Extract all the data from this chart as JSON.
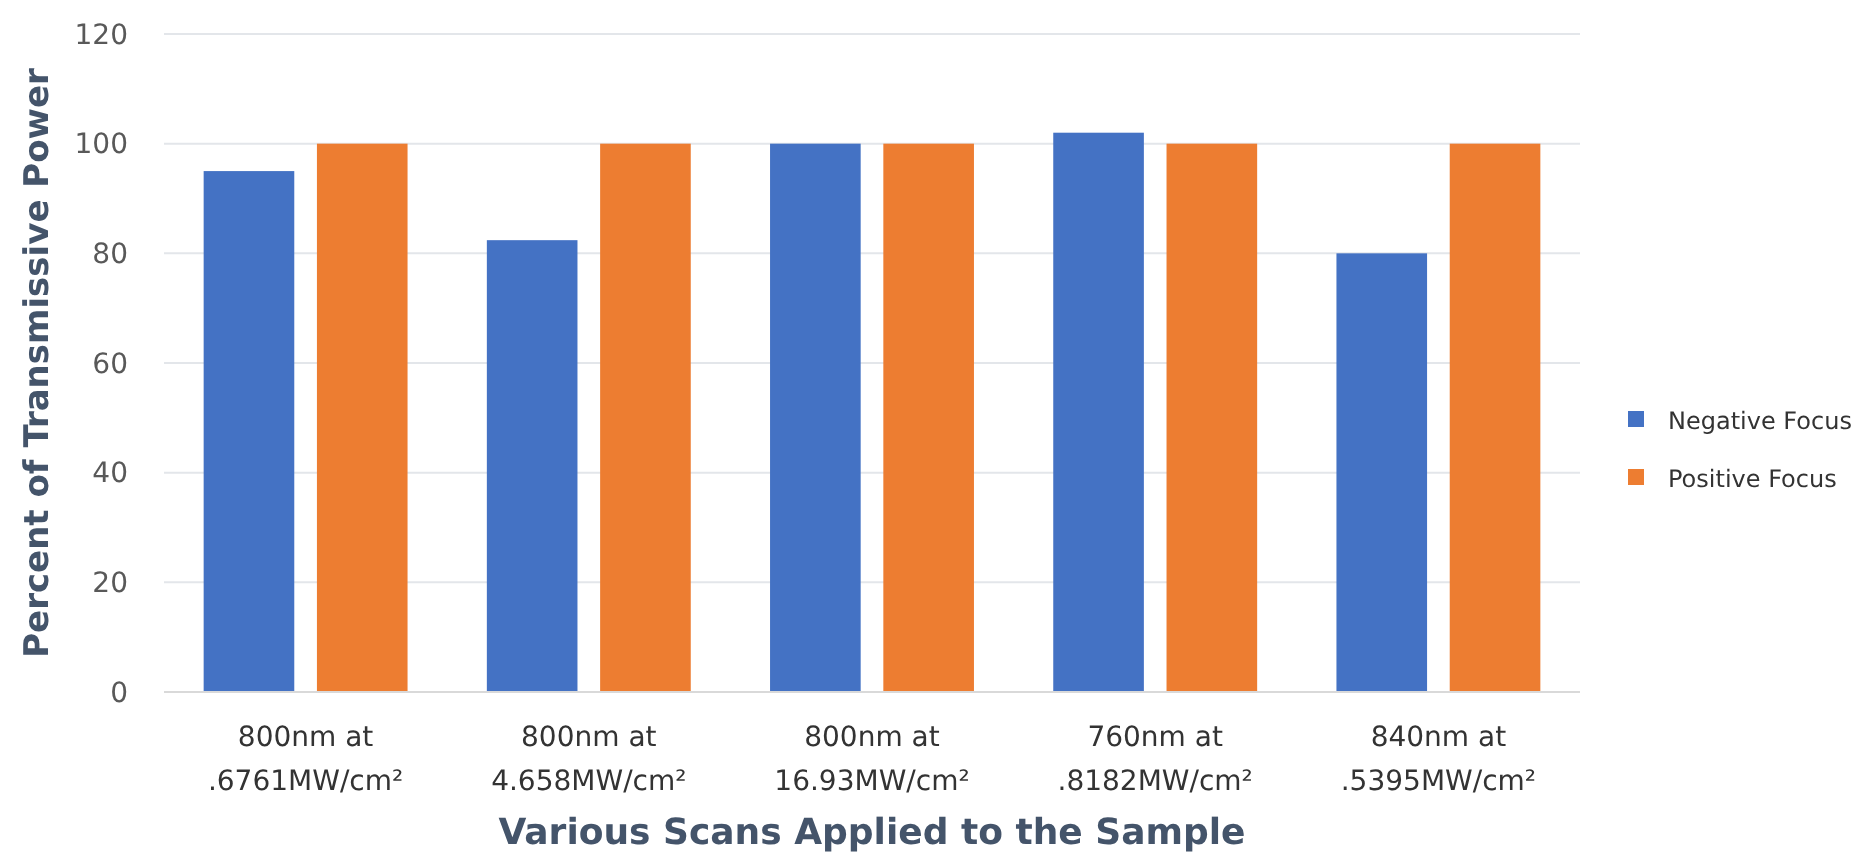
{
  "chart_data": {
    "type": "bar",
    "xlabel": "Various Scans Applied to the Sample",
    "ylabel": "Percent of Transmissive Power",
    "categories": [
      "800nm at\n.6761MW/cm²",
      "800nm at\n4.658MW/cm²",
      "800nm at\n16.93MW/cm²",
      "760nm at\n.8182MW/cm²",
      "840nm at\n.5395MW/cm²"
    ],
    "series": [
      {
        "name": "Negative Focus",
        "color": "#4472c4",
        "values": [
          95,
          82.4,
          100,
          102,
          80
        ]
      },
      {
        "name": "Positive Focus",
        "color": "#ed7d31",
        "values": [
          100,
          100,
          100,
          100,
          100
        ]
      }
    ],
    "ylim": [
      0,
      120
    ],
    "yticks": [
      0,
      20,
      40,
      60,
      80,
      100,
      120
    ],
    "grid": "y",
    "legend": "right"
  }
}
